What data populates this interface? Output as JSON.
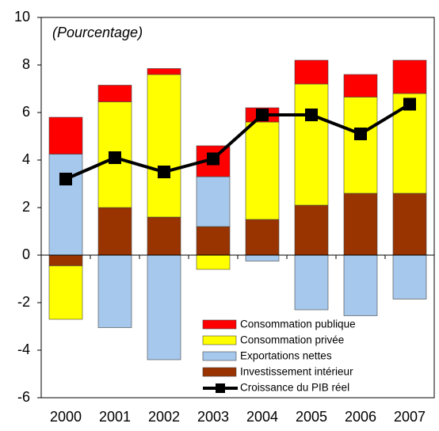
{
  "chart_data": {
    "type": "bar",
    "subtitle": "(Pourcentage)",
    "categories": [
      "2000",
      "2001",
      "2002",
      "2003",
      "2004",
      "2005",
      "2006",
      "2007"
    ],
    "stacked": true,
    "series": [
      {
        "name": "Investissement intérieur",
        "color": "#993300",
        "values": [
          -0.45,
          2.0,
          1.6,
          1.2,
          1.5,
          2.1,
          2.6,
          2.6
        ]
      },
      {
        "name": "Consommation privée",
        "color": "#ffff00",
        "values": [
          -2.25,
          4.45,
          6.0,
          -0.6,
          4.1,
          5.1,
          4.05,
          4.2
        ]
      },
      {
        "name": "Exportations nettes",
        "color": "#a6c8ec",
        "values": [
          4.25,
          -3.05,
          -4.4,
          2.1,
          -0.25,
          -2.3,
          -2.55,
          -1.85
        ]
      },
      {
        "name": "Consommation publique",
        "color": "#ff0000",
        "values": [
          1.55,
          0.7,
          0.25,
          1.3,
          0.6,
          1.0,
          0.95,
          1.4
        ]
      },
      {
        "name": "Croissance du PIB réel",
        "color": "#000000",
        "type": "line",
        "values": [
          3.2,
          4.1,
          3.5,
          4.05,
          5.9,
          5.9,
          5.1,
          6.35
        ]
      }
    ],
    "legend_order": [
      3,
      1,
      2,
      0,
      4
    ],
    "ylim": [
      -6,
      10
    ],
    "yticks": [
      -6,
      -4,
      -2,
      0,
      2,
      4,
      6,
      8,
      10
    ]
  }
}
